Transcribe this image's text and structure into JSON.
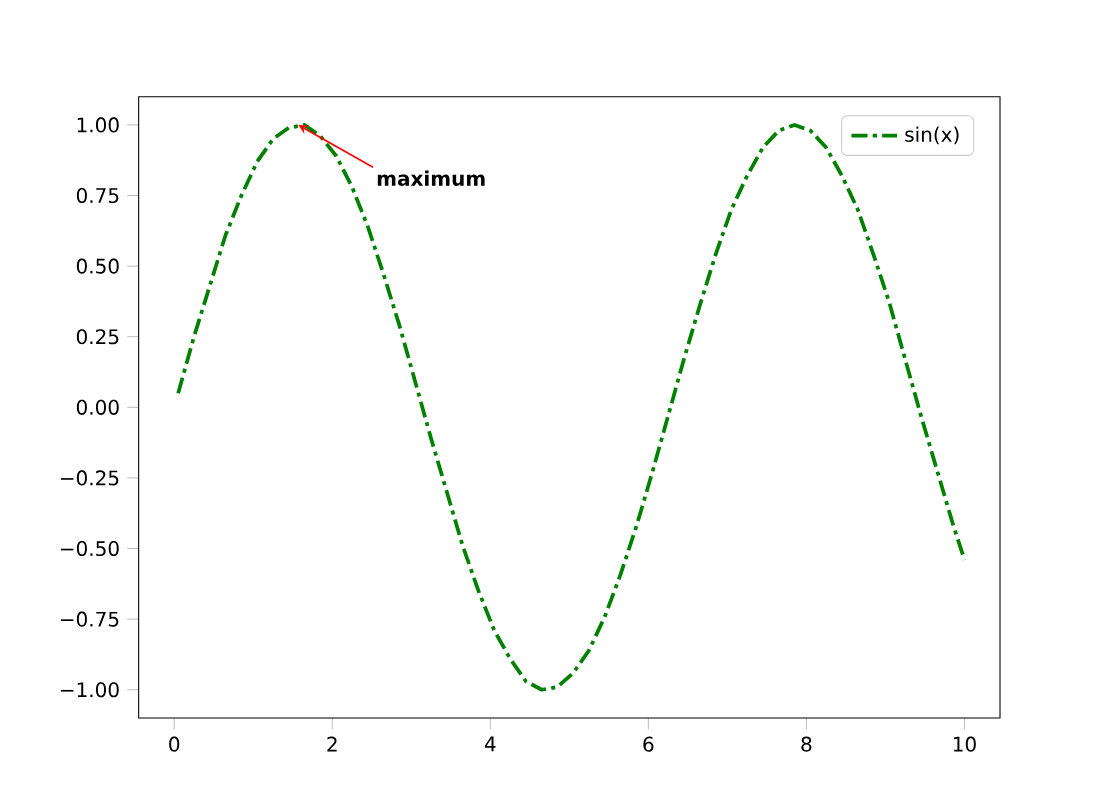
{
  "chart_data": {
    "type": "line",
    "xlim": [
      -0.45,
      10.45
    ],
    "ylim": [
      -1.1,
      1.1
    ],
    "xticks": [
      0,
      2,
      4,
      6,
      8,
      10
    ],
    "yticks": [
      {
        "value": -1,
        "label": "−1.00"
      },
      {
        "value": -0.75,
        "label": "−0.75"
      },
      {
        "value": -0.5,
        "label": "−0.50"
      },
      {
        "value": -0.25,
        "label": "−0.25"
      },
      {
        "value": 0,
        "label": "0.00"
      },
      {
        "value": 0.25,
        "label": "0.25"
      },
      {
        "value": 0.5,
        "label": "0.50"
      },
      {
        "value": 0.75,
        "label": "0.75"
      },
      {
        "value": 1,
        "label": "1.00"
      }
    ],
    "legend": "top right",
    "line_style": "dashdot",
    "annotations": [
      {
        "text": "maximum",
        "x": 1.57,
        "y": 1.0
      }
    ],
    "series": [
      {
        "name": "sin(x)",
        "color": "#008000",
        "x": [
          0.05,
          0.25,
          0.45,
          0.65,
          0.85,
          1.05,
          1.25,
          1.45,
          1.65,
          1.85,
          2.05,
          2.25,
          2.45,
          2.65,
          2.85,
          3.05,
          3.25,
          3.45,
          3.65,
          3.85,
          4.05,
          4.25,
          4.45,
          4.65,
          4.85,
          5.05,
          5.25,
          5.45,
          5.65,
          5.85,
          6.05,
          6.25,
          6.45,
          6.65,
          6.85,
          7.05,
          7.25,
          7.45,
          7.65,
          7.85,
          8.05,
          8.25,
          8.45,
          8.65,
          8.85,
          9.05,
          9.25,
          9.45,
          9.65,
          9.85,
          10.0
        ],
        "values": [
          0.05,
          0.25,
          0.43,
          0.61,
          0.75,
          0.87,
          0.95,
          0.99,
          1.0,
          0.96,
          0.89,
          0.78,
          0.64,
          0.47,
          0.29,
          0.09,
          -0.11,
          -0.3,
          -0.49,
          -0.65,
          -0.79,
          -0.89,
          -0.97,
          -1.0,
          -0.99,
          -0.94,
          -0.86,
          -0.74,
          -0.59,
          -0.42,
          -0.23,
          -0.03,
          0.17,
          0.36,
          0.54,
          0.7,
          0.82,
          0.92,
          0.98,
          1.0,
          0.98,
          0.92,
          0.82,
          0.7,
          0.54,
          0.37,
          0.17,
          -0.03,
          -0.22,
          -0.41,
          -0.54
        ]
      }
    ]
  }
}
